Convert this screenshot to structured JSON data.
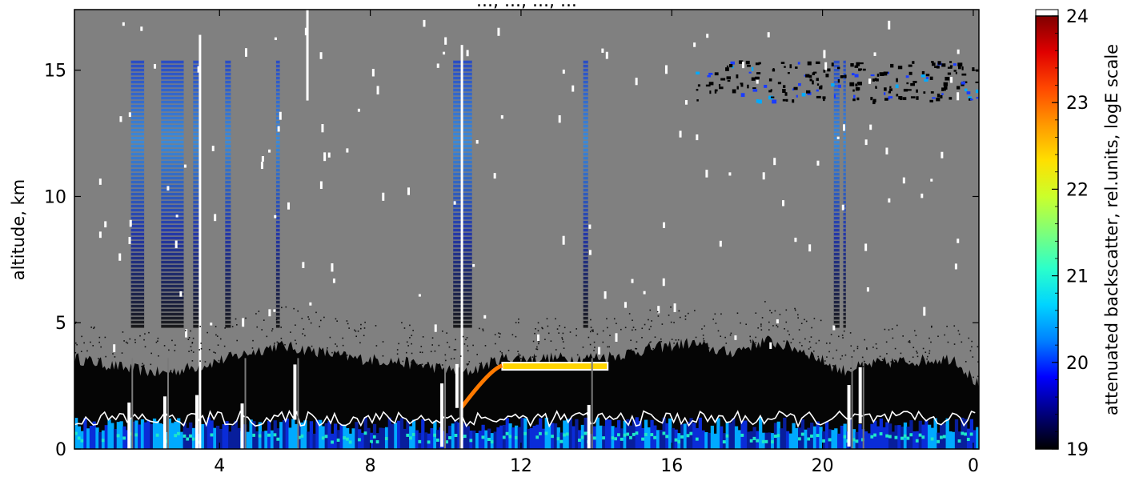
{
  "chart_data": {
    "type": "heatmap",
    "title": "..., ..., ..., ...",
    "xlabel": "",
    "ylabel": "altitude, km",
    "x_ticks": [
      {
        "value": 3,
        "label": "4"
      },
      {
        "value": 7,
        "label": "8"
      },
      {
        "value": 11,
        "label": "12"
      },
      {
        "value": 15,
        "label": "16"
      },
      {
        "value": 19,
        "label": "20"
      },
      {
        "value": 23,
        "label": "0"
      }
    ],
    "xlim": [
      -0.85,
      23.15
    ],
    "y_ticks": [
      0,
      5,
      10,
      15
    ],
    "ylim": [
      0,
      17.4
    ],
    "colorbar": {
      "label": "attenuated backscatter, rel.units, logE scale",
      "ticks": [
        19,
        20,
        21,
        22,
        23,
        24
      ],
      "range": [
        19,
        24
      ],
      "colors": [
        "#000000",
        "#00007f",
        "#0000ff",
        "#0080ff",
        "#00d4ff",
        "#2bffcb",
        "#7dff7a",
        "#cbff2b",
        "#ffdf00",
        "#ff9800",
        "#ff4800",
        "#e00000",
        "#800000"
      ],
      "over_color": "#ffffff"
    },
    "background_color": "#808080",
    "boundary_layer": {
      "top_km_by_hour": [
        [
          -0.85,
          3.6
        ],
        [
          0.5,
          3.2
        ],
        [
          1.5,
          3.0
        ],
        [
          2.5,
          3.3
        ],
        [
          3.5,
          3.7
        ],
        [
          4.5,
          4.1
        ],
        [
          5.5,
          3.9
        ],
        [
          6.5,
          3.6
        ],
        [
          7.5,
          3.5
        ],
        [
          8.5,
          3.3
        ],
        [
          9.5,
          3.0
        ],
        [
          10.5,
          3.6
        ],
        [
          11.5,
          3.6
        ],
        [
          12.5,
          3.6
        ],
        [
          13.5,
          3.7
        ],
        [
          14.5,
          4.0
        ],
        [
          15.5,
          4.2
        ],
        [
          16.5,
          3.8
        ],
        [
          17.5,
          4.3
        ],
        [
          18.5,
          3.9
        ],
        [
          19.5,
          3.1
        ],
        [
          20.5,
          3.4
        ],
        [
          21.5,
          3.5
        ],
        [
          22.5,
          3.6
        ],
        [
          23.15,
          2.5
        ]
      ],
      "surface_layer_km": 1.2,
      "elevated_layer": {
        "x_from": 10.5,
        "x_to": 13.3,
        "altitude_km": 3.3
      }
    },
    "high_cloud_km": [
      13.8,
      15.4
    ],
    "gaps_hours": [
      0.6,
      1.55,
      2.4,
      3.6,
      5.0,
      8.9,
      9.3,
      12.8,
      19.7,
      20.0
    ],
    "noise_columns": [
      {
        "x_from": 0.65,
        "x_to": 1.0
      },
      {
        "x_from": 1.45,
        "x_to": 2.05
      },
      {
        "x_from": 2.3,
        "x_to": 2.45
      },
      {
        "x_from": 3.15,
        "x_to": 3.3
      },
      {
        "x_from": 4.5,
        "x_to": 4.6
      },
      {
        "x_from": 9.2,
        "x_to": 9.7
      },
      {
        "x_from": 12.65,
        "x_to": 12.78
      },
      {
        "x_from": 19.3,
        "x_to": 19.45
      },
      {
        "x_from": 19.55,
        "x_to": 19.62
      }
    ],
    "noise_altitude_km": [
      4.8,
      15.4
    ],
    "grid": false
  }
}
